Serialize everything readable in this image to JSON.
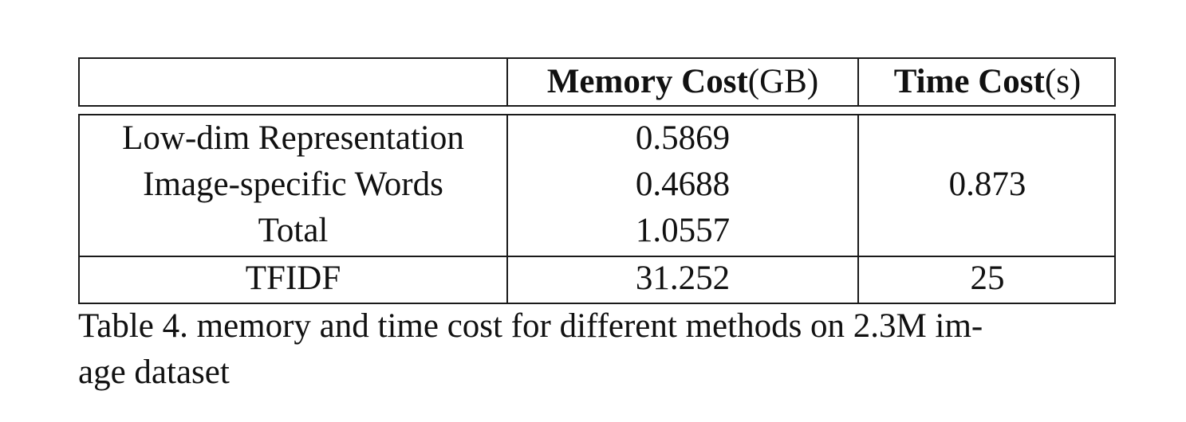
{
  "table": {
    "header": {
      "col0": "",
      "col1_bold": "Memory Cost",
      "col1_unit": "(GB)",
      "col2_bold": "Time Cost",
      "col2_unit": "(s)"
    },
    "rows": [
      {
        "method": "Low-dim Representation",
        "memory": "0.5869"
      },
      {
        "method": "Image-specific Words",
        "memory": "0.4688"
      },
      {
        "method": "Total",
        "memory": "1.0557"
      }
    ],
    "group_time": "0.873",
    "tfidf": {
      "method": "TFIDF",
      "memory": "31.252",
      "time": "25"
    }
  },
  "caption": {
    "line1": "Table 4. memory and time cost for different methods on 2.3M im-",
    "line2": "age dataset"
  }
}
